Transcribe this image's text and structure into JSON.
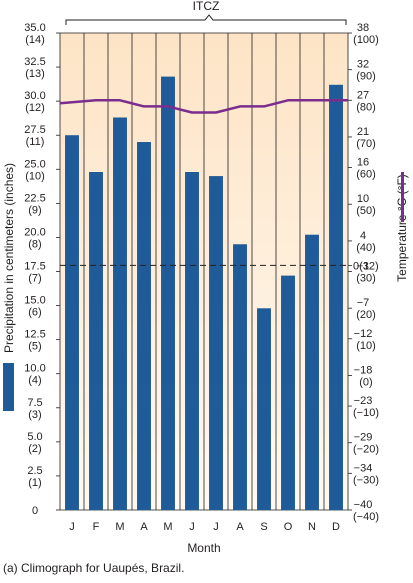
{
  "chart_data": {
    "type": "bar",
    "top_label": "ITCZ",
    "xlabel": "Month",
    "ylabel": "Precipitation in centimeters (inches)",
    "y2label": "Temperature °C (°F)",
    "categories": [
      "J",
      "F",
      "M",
      "A",
      "M",
      "J",
      "J",
      "A",
      "S",
      "O",
      "N",
      "D"
    ],
    "series": [
      {
        "kind": "bar",
        "values": [
          27.5,
          24.8,
          28.8,
          27.0,
          31.8,
          24.8,
          24.5,
          19.5,
          14.8,
          17.2,
          20.2,
          31.2
        ]
      },
      {
        "kind": "line",
        "values": [
          26.5,
          27,
          27,
          26,
          26,
          25,
          25,
          26,
          26,
          27,
          27,
          27
        ]
      }
    ],
    "ylim": [
      0,
      35
    ],
    "y_ticks": [
      {
        "v": 0,
        "label": "0",
        "sub": ""
      },
      {
        "v": 2.5,
        "label": "2.5",
        "sub": "(1)"
      },
      {
        "v": 5,
        "label": "5.0",
        "sub": "(2)"
      },
      {
        "v": 7.5,
        "label": "7.5",
        "sub": "(3)"
      },
      {
        "v": 10,
        "label": "10.0",
        "sub": "(4)"
      },
      {
        "v": 12.5,
        "label": "12.5",
        "sub": "(5)"
      },
      {
        "v": 15,
        "label": "15.0",
        "sub": "(6)"
      },
      {
        "v": 17.5,
        "label": "17.5",
        "sub": "(7)"
      },
      {
        "v": 20,
        "label": "20.0",
        "sub": "(8)"
      },
      {
        "v": 22.5,
        "label": "22.5",
        "sub": "(9)"
      },
      {
        "v": 25,
        "label": "25.0",
        "sub": "(10)"
      },
      {
        "v": 27.5,
        "label": "27.5",
        "sub": "(11)"
      },
      {
        "v": 30,
        "label": "30.0",
        "sub": "(12)"
      },
      {
        "v": 32.5,
        "label": "32.5",
        "sub": "(13)"
      },
      {
        "v": 35,
        "label": "35.0",
        "sub": "(14)"
      }
    ],
    "y2_ticks": [
      {
        "v": -40,
        "label": "−40",
        "sub": "(−40)"
      },
      {
        "v": -34,
        "label": "−34",
        "sub": "(−30)"
      },
      {
        "v": -29,
        "label": "−29",
        "sub": "(−20)"
      },
      {
        "v": -23,
        "label": "−23",
        "sub": "(−10)"
      },
      {
        "v": -18,
        "label": "−18",
        "sub": "(0)"
      },
      {
        "v": -12,
        "label": "−12",
        "sub": "(10)"
      },
      {
        "v": -7,
        "label": "−7",
        "sub": "(20)"
      },
      {
        "v": -1,
        "label": "−1",
        "sub": "(30)"
      },
      {
        "v": 0,
        "label": "0",
        "sub": "(32)"
      },
      {
        "v": 4,
        "label": "4",
        "sub": "(40)"
      },
      {
        "v": 10,
        "label": "10",
        "sub": "(50)"
      },
      {
        "v": 16,
        "label": "16",
        "sub": "(60)"
      },
      {
        "v": 21,
        "label": "21",
        "sub": "(70)"
      },
      {
        "v": 27,
        "label": "27",
        "sub": "(80)"
      },
      {
        "v": 32,
        "label": "32",
        "sub": "(90)"
      },
      {
        "v": 38,
        "label": "38",
        "sub": "(100)"
      }
    ],
    "y2lim": [
      -40,
      38
    ],
    "freezing_line": 0,
    "colors": {
      "bar": "#1f5b99",
      "line": "#7b2d8e",
      "background": "#fbe3c6",
      "grid": "#231f20"
    }
  },
  "caption": "(a) Climograph for Uaupés, Brazil."
}
